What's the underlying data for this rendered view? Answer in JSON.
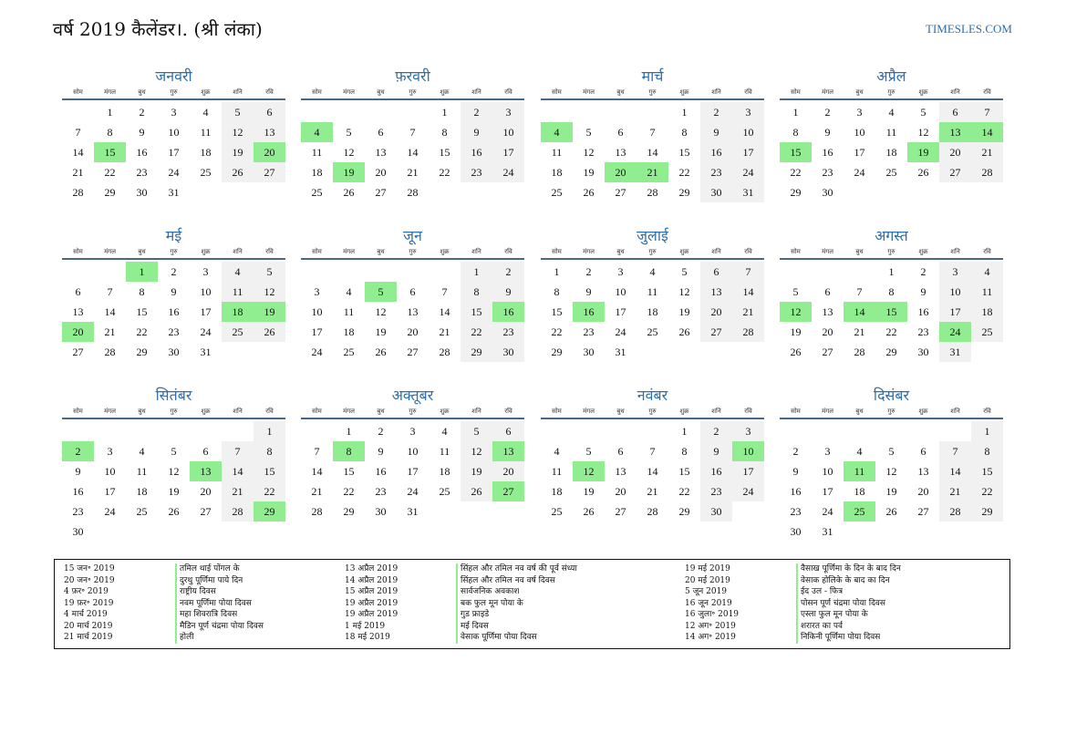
{
  "page": {
    "title": "वर्ष 2019 कैलेंडर।. (श्री लंका)",
    "site": "TIMESLES.COM"
  },
  "weekdays": [
    "सोम",
    "मंगल",
    "बुध",
    "गुरु",
    "शुक्र",
    "शनि",
    "रवि"
  ],
  "months": [
    {
      "name": "जनवरी",
      "start": 1,
      "days": 31,
      "holidays": [
        15,
        20
      ]
    },
    {
      "name": "फ़रवरी",
      "start": 4,
      "days": 28,
      "holidays": [
        4,
        19
      ]
    },
    {
      "name": "मार्च",
      "start": 4,
      "days": 31,
      "holidays": [
        4,
        20,
        21
      ]
    },
    {
      "name": "अप्रैल",
      "start": 0,
      "days": 30,
      "holidays": [
        13,
        14,
        15,
        19
      ]
    },
    {
      "name": "मई",
      "start": 2,
      "days": 31,
      "holidays": [
        1,
        18,
        19,
        20
      ]
    },
    {
      "name": "जून",
      "start": 5,
      "days": 30,
      "holidays": [
        5,
        16
      ]
    },
    {
      "name": "जुलाई",
      "start": 0,
      "days": 31,
      "holidays": [
        16
      ]
    },
    {
      "name": "अगस्त",
      "start": 3,
      "days": 31,
      "holidays": [
        12,
        14,
        15,
        24
      ]
    },
    {
      "name": "सितंबर",
      "start": 6,
      "days": 30,
      "holidays": [
        2,
        13,
        29
      ]
    },
    {
      "name": "अक्तूबर",
      "start": 1,
      "days": 31,
      "holidays": [
        8,
        13,
        27
      ]
    },
    {
      "name": "नवंबर",
      "start": 4,
      "days": 30,
      "holidays": [
        10,
        12
      ]
    },
    {
      "name": "दिसंबर",
      "start": 6,
      "days": 31,
      "holidays": [
        11,
        25
      ]
    }
  ],
  "legend": [
    [
      {
        "date": "15 जन॰ 2019",
        "name": "तमिल थाई पोंगल के"
      },
      {
        "date": "20 जन॰ 2019",
        "name": "दुरथु पूर्णिमा पाये दिन"
      },
      {
        "date": "4 फ़र॰ 2019",
        "name": "राष्ट्रीय दिवस"
      },
      {
        "date": "19 फ़र॰ 2019",
        "name": "नवम पूर्णिमा पोया दिवस"
      },
      {
        "date": "4 मार्च 2019",
        "name": "महा शिवरात्रि दिवस"
      },
      {
        "date": "20 मार्च 2019",
        "name": "मैडिन पूर्ण चंद्रमा पोया दिवस"
      },
      {
        "date": "21 मार्च 2019",
        "name": "होली"
      }
    ],
    [
      {
        "date": "13 अप्रैल 2019",
        "name": "सिंहल और तमिल नव वर्ष की पूर्व संध्या"
      },
      {
        "date": "14 अप्रैल 2019",
        "name": "सिंहल और तमिल नव वर्ष दिवस"
      },
      {
        "date": "15 अप्रैल 2019",
        "name": "सार्वजनिक अवकाश"
      },
      {
        "date": "19 अप्रैल 2019",
        "name": "बक फुल मून पोया के"
      },
      {
        "date": "19 अप्रैल 2019",
        "name": "गुड फ्राइडे"
      },
      {
        "date": "1 मई 2019",
        "name": "मई दिवस"
      },
      {
        "date": "18 मई 2019",
        "name": "वेसाक पूर्णिमा पोया दिवस"
      }
    ],
    [
      {
        "date": "19 मई 2019",
        "name": "वैसाख पूर्णिमा के दिन के बाद दिन"
      },
      {
        "date": "20 मई 2019",
        "name": "वेसाक होलिके के बाद का दिन"
      },
      {
        "date": "5 जून 2019",
        "name": "ईद उल - फित्र"
      },
      {
        "date": "16 जून 2019",
        "name": "पोसन पूर्ण चंद्रमा पोया दिवस"
      },
      {
        "date": "16 जुला॰ 2019",
        "name": "एस्ला फुल मून पोया के"
      },
      {
        "date": "12 अग॰ 2019",
        "name": "शरारत का पर्व"
      },
      {
        "date": "14 अग॰ 2019",
        "name": "निकिनी पूर्णिमा पोया दिवस"
      }
    ]
  ],
  "colors": {
    "accent": "#2f6ea8",
    "holiday": "#90ee90",
    "weekend": "#f1f1f1"
  }
}
